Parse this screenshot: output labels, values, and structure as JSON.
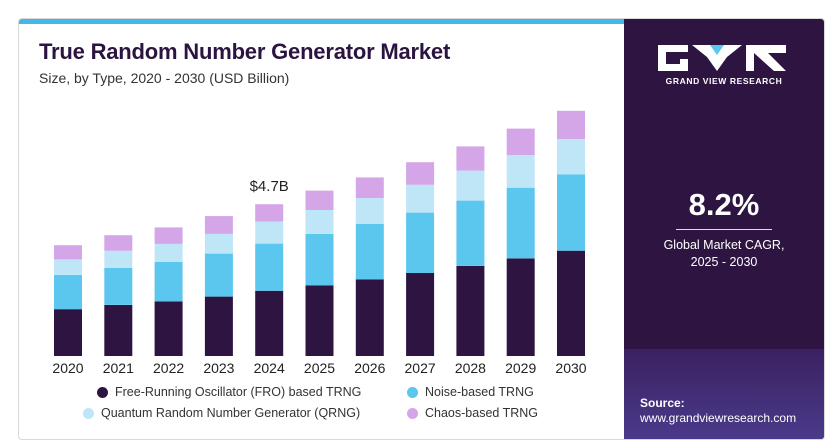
{
  "header": {
    "title": "True Random Number Generator Market",
    "subtitle": "Size, by Type, 2020 - 2030 (USD Billion)"
  },
  "colors": {
    "fro": "#2e1541",
    "noise": "#5bc6ee",
    "qrng": "#bfe6f7",
    "chaos": "#d4a6e8",
    "accent_bar": "#43b8e8",
    "panel": "#2e1541"
  },
  "chart_data": {
    "type": "bar",
    "stacked": true,
    "categories": [
      "2020",
      "2021",
      "2022",
      "2023",
      "2024",
      "2025",
      "2026",
      "2027",
      "2028",
      "2029",
      "2030"
    ],
    "series": [
      {
        "name": "Free-Running Oscillator (FRO) based TRNG",
        "values": [
          1.45,
          1.58,
          1.69,
          1.84,
          2.02,
          2.19,
          2.37,
          2.57,
          2.79,
          3.02,
          3.26
        ]
      },
      {
        "name": "Noise-based TRNG",
        "values": [
          1.06,
          1.15,
          1.22,
          1.33,
          1.46,
          1.59,
          1.72,
          1.87,
          2.02,
          2.19,
          2.36
        ]
      },
      {
        "name": "Quantum Random Number Generator (QRNG)",
        "values": [
          0.48,
          0.53,
          0.56,
          0.61,
          0.68,
          0.74,
          0.8,
          0.86,
          0.93,
          1.01,
          1.09
        ]
      },
      {
        "name": "Chaos-based TRNG",
        "values": [
          0.44,
          0.48,
          0.51,
          0.55,
          0.54,
          0.6,
          0.64,
          0.7,
          0.75,
          0.82,
          0.88
        ]
      }
    ],
    "annotations": [
      {
        "category": "2024",
        "text": "$4.7B"
      }
    ],
    "grid": false,
    "legend_position": "bottom"
  },
  "legend": {
    "items": [
      {
        "label": "Free-Running Oscillator (FRO) based TRNG"
      },
      {
        "label": "Noise-based TRNG"
      },
      {
        "label": "Quantum Random Number Generator (QRNG)"
      },
      {
        "label": "Chaos-based TRNG"
      }
    ]
  },
  "sidebar": {
    "logo_text": "GRAND VIEW RESEARCH",
    "logo_icon": "grand-view-research-logo",
    "cagr_value": "8.2%",
    "cagr_label_line1": "Global Market CAGR,",
    "cagr_label_line2": "2025 - 2030",
    "source_label": "Source:",
    "source_url": "www.grandviewresearch.com"
  }
}
